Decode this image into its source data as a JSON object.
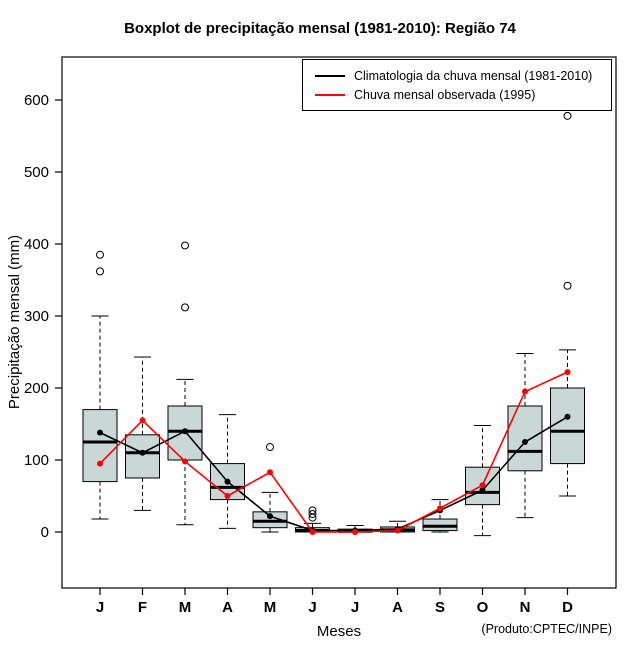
{
  "footnote": "(Produto:CPTEC/INPE)",
  "chart_data": {
    "type": "boxplot",
    "title": "Boxplot de precipitação mensal (1981-2010): Região 74",
    "xlabel": "Meses",
    "ylabel": "Precipitação mensal (mm)",
    "ylim": [
      -60,
      660
    ],
    "yticks": [
      0,
      100,
      200,
      300,
      400,
      500,
      600
    ],
    "grid": false,
    "legend_position": "top-right-inside",
    "box_fill": "#c9d8d6",
    "categories": [
      "J",
      "F",
      "M",
      "A",
      "M",
      "J",
      "J",
      "A",
      "S",
      "O",
      "N",
      "D"
    ],
    "boxes": [
      {
        "low": 18,
        "q1": 70,
        "median": 125,
        "q3": 170,
        "high": 300,
        "outliers": [
          362,
          385
        ]
      },
      {
        "low": 30,
        "q1": 75,
        "median": 110,
        "q3": 135,
        "high": 243,
        "outliers": []
      },
      {
        "low": 10,
        "q1": 100,
        "median": 140,
        "q3": 175,
        "high": 212,
        "outliers": [
          312,
          398
        ]
      },
      {
        "low": 5,
        "q1": 45,
        "median": 62,
        "q3": 95,
        "high": 163,
        "outliers": []
      },
      {
        "low": 0,
        "q1": 6,
        "median": 15,
        "q3": 28,
        "high": 55,
        "outliers": [
          118
        ]
      },
      {
        "low": 0,
        "q1": 0,
        "median": 2,
        "q3": 6,
        "high": 12,
        "outliers": [
          20,
          25,
          30
        ]
      },
      {
        "low": 0,
        "q1": 0,
        "median": 1,
        "q3": 4,
        "high": 9,
        "outliers": []
      },
      {
        "low": 0,
        "q1": 0,
        "median": 3,
        "q3": 7,
        "high": 15,
        "outliers": []
      },
      {
        "low": 0,
        "q1": 2,
        "median": 8,
        "q3": 18,
        "high": 45,
        "outliers": []
      },
      {
        "low": -5,
        "q1": 38,
        "median": 55,
        "q3": 90,
        "high": 148,
        "outliers": []
      },
      {
        "low": 20,
        "q1": 85,
        "median": 112,
        "q3": 175,
        "high": 248,
        "outliers": []
      },
      {
        "low": 50,
        "q1": 95,
        "median": 140,
        "q3": 200,
        "high": 253,
        "outliers": [
          342,
          578
        ]
      }
    ],
    "series": [
      {
        "name": "Climatologia da chuva mensal (1981-2010)",
        "color": "#000000",
        "values": [
          138,
          110,
          140,
          70,
          22,
          2,
          2,
          4,
          30,
          58,
          125,
          160
        ]
      },
      {
        "name": "Chuva mensal observada (1995)",
        "color": "#ff0000",
        "values": [
          95,
          155,
          98,
          50,
          83,
          0,
          0,
          2,
          33,
          65,
          195,
          222
        ]
      }
    ]
  }
}
